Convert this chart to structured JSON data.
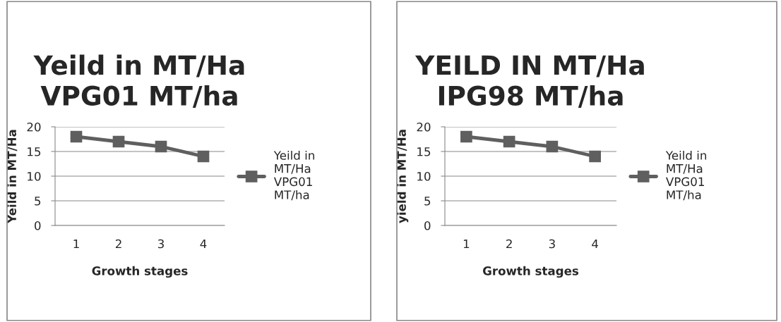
{
  "chart_data": [
    {
      "type": "line",
      "title": "Yeild in MT/Ha\nVPG01 MT/ha",
      "xlabel": "Growth stages",
      "ylabel": "Yeild in MT/Ha",
      "categories": [
        "1",
        "2",
        "3",
        "4"
      ],
      "series": [
        {
          "name": "Yeild in MT/Ha VPG01 MT/ha",
          "color": "#5f5f5f",
          "values": [
            18,
            17,
            16,
            14
          ]
        }
      ],
      "ylim": [
        0,
        20
      ],
      "yticks": [
        0,
        5,
        10,
        15,
        20
      ],
      "grid": "y",
      "legend": "right",
      "marker": "square",
      "line_style": "solid"
    },
    {
      "type": "line",
      "title": "YEILD IN MT/Ha\nIPG98 MT/ha",
      "xlabel": "Growth stages",
      "ylabel": "yield in MT/Ha",
      "categories": [
        "1",
        "2",
        "3",
        "4"
      ],
      "series": [
        {
          "name": "Yeild in MT/Ha VPG01 MT/ha",
          "color": "#5f5f5f",
          "values": [
            18,
            17,
            16,
            14
          ]
        }
      ],
      "ylim": [
        0,
        20
      ],
      "yticks": [
        0,
        5,
        10,
        15,
        20
      ],
      "grid": "y",
      "legend": "right",
      "marker": "square",
      "line_style": "solid"
    }
  ]
}
